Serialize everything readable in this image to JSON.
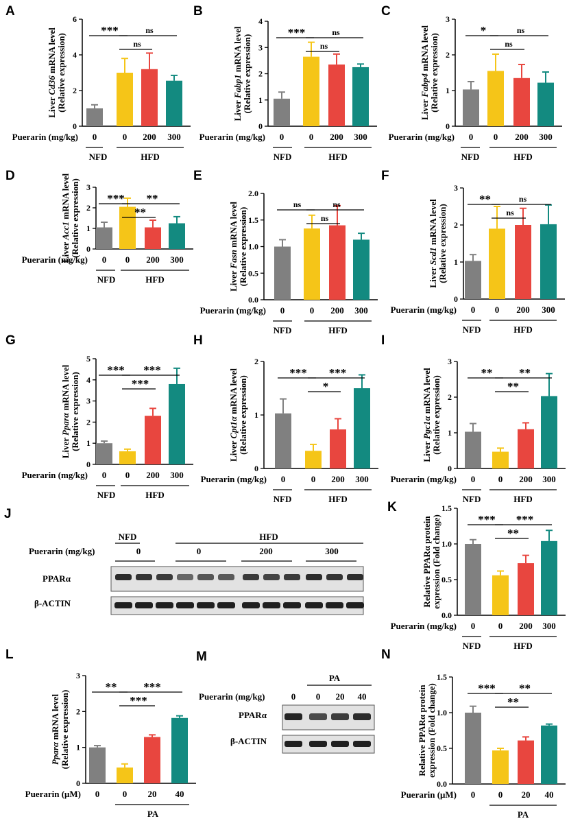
{
  "colors": {
    "NFD": "#808080",
    "HFD": "#f5c518",
    "Low": "#e8463f",
    "High": "#138a80",
    "axis": "#000000",
    "sig_line": "#000000"
  },
  "x_title_mgkg": "Puerarin (mg/kg)",
  "x_title_uM": "Puerarin (μM)",
  "chart_data": [
    {
      "id": "A",
      "type": "bar",
      "gene": "Cd36",
      "ylabel_prefix": "Liver ",
      "ylabel_suffix": " mRNA level",
      "ylabel2": "(Relative expression)",
      "categories": [
        "0",
        "0",
        "200",
        "300"
      ],
      "groups": [
        "NFD",
        "HFD"
      ],
      "values": [
        1.0,
        3.0,
        3.2,
        2.55
      ],
      "errors": [
        0.2,
        0.8,
        0.9,
        0.3
      ],
      "ylim": [
        0,
        6
      ],
      "yticks": [
        "0",
        "2",
        "4",
        "6"
      ],
      "sig": [
        {
          "label": "***",
          "from": 0,
          "to": 1,
          "level": 0
        },
        {
          "label": "ns",
          "from": 1,
          "to": 3,
          "level": 0
        },
        {
          "label": "ns",
          "from": 1,
          "to": 2,
          "level": 1
        }
      ]
    },
    {
      "id": "B",
      "type": "bar",
      "gene": "Fabp1",
      "ylabel_prefix": "Liver ",
      "ylabel_suffix": " mRNA level",
      "ylabel2": "(Relative expression)",
      "categories": [
        "0",
        "0",
        "200",
        "300"
      ],
      "groups": [
        "NFD",
        "HFD"
      ],
      "values": [
        1.05,
        2.65,
        2.35,
        2.25
      ],
      "errors": [
        0.25,
        0.55,
        0.4,
        0.12
      ],
      "ylim": [
        0,
        4
      ],
      "yticks": [
        "0",
        "1",
        "2",
        "3",
        "4"
      ],
      "sig": [
        {
          "label": "***",
          "from": 0,
          "to": 1,
          "level": 0
        },
        {
          "label": "ns",
          "from": 1,
          "to": 3,
          "level": 0
        },
        {
          "label": "ns",
          "from": 1,
          "to": 2,
          "level": 1
        }
      ]
    },
    {
      "id": "C",
      "type": "bar",
      "gene": "Fabp4",
      "ylabel_prefix": "Liver ",
      "ylabel_suffix": " mRNA level",
      "ylabel2": "(Relative expression)",
      "categories": [
        "0",
        "0",
        "200",
        "300"
      ],
      "groups": [
        "NFD",
        "HFD"
      ],
      "values": [
        1.03,
        1.55,
        1.35,
        1.22
      ],
      "errors": [
        0.22,
        0.47,
        0.38,
        0.3
      ],
      "ylim": [
        0,
        3
      ],
      "yticks": [
        "0",
        "1",
        "2",
        "3"
      ],
      "sig": [
        {
          "label": "*",
          "from": 0,
          "to": 1,
          "level": 0
        },
        {
          "label": "ns",
          "from": 1,
          "to": 3,
          "level": 0
        },
        {
          "label": "ns",
          "from": 1,
          "to": 2,
          "level": 1
        }
      ]
    },
    {
      "id": "D",
      "type": "bar",
      "gene": "Acc1",
      "ylabel_prefix": "Liver ",
      "ylabel_suffix": " mRNA level",
      "ylabel2": "(Relative expression)",
      "categories": [
        "0",
        "0",
        "200",
        "300"
      ],
      "groups": [
        "NFD",
        "HFD"
      ],
      "values": [
        1.05,
        2.05,
        1.05,
        1.25
      ],
      "errors": [
        0.25,
        0.42,
        0.35,
        0.32
      ],
      "ylim": [
        0,
        3
      ],
      "yticks": [
        "0",
        "1",
        "2",
        "3"
      ],
      "sig": [
        {
          "label": "***",
          "from": 0,
          "to": 1,
          "level": 0
        },
        {
          "label": "**",
          "from": 1,
          "to": 3,
          "level": 0
        },
        {
          "label": "**",
          "from": 1,
          "to": 2,
          "level": 1
        }
      ]
    },
    {
      "id": "E",
      "type": "bar",
      "gene": "Fasn",
      "ylabel_prefix": "Liver ",
      "ylabel_suffix": " mRNA level",
      "ylabel2": "(Relative expression)",
      "categories": [
        "0",
        "0",
        "200",
        "300"
      ],
      "groups": [
        "NFD",
        "HFD"
      ],
      "values": [
        1.0,
        1.34,
        1.4,
        1.13
      ],
      "errors": [
        0.13,
        0.25,
        0.37,
        0.12
      ],
      "ylim": [
        0,
        2
      ],
      "yticks": [
        "0.0",
        "0.5",
        "1.0",
        "1.5",
        "2.0"
      ],
      "sig": [
        {
          "label": "ns",
          "from": 0,
          "to": 1,
          "level": 0
        },
        {
          "label": "ns",
          "from": 1,
          "to": 3,
          "level": 0
        },
        {
          "label": "ns",
          "from": 1,
          "to": 2,
          "level": 1
        }
      ]
    },
    {
      "id": "F",
      "type": "bar",
      "gene": "Scd1",
      "ylabel_prefix": "Liver ",
      "ylabel_suffix": " mRNA level",
      "ylabel2": "(Relative expression)",
      "categories": [
        "0",
        "0",
        "200",
        "300"
      ],
      "groups": [
        "NFD",
        "HFD"
      ],
      "values": [
        1.03,
        1.9,
        2.0,
        2.02
      ],
      "errors": [
        0.17,
        0.6,
        0.45,
        0.52
      ],
      "ylim": [
        0,
        3
      ],
      "yticks": [
        "0",
        "1",
        "2",
        "3"
      ],
      "sig": [
        {
          "label": "**",
          "from": 0,
          "to": 1,
          "level": 0
        },
        {
          "label": "ns",
          "from": 1,
          "to": 3,
          "level": 0
        },
        {
          "label": "ns",
          "from": 1,
          "to": 2,
          "level": 1
        }
      ]
    },
    {
      "id": "G",
      "type": "bar",
      "gene": "Pparα",
      "ylabel_prefix": "Liver ",
      "ylabel_suffix": " mRNA level",
      "ylabel2": "(Relative expression)",
      "categories": [
        "0",
        "0",
        "200",
        "300"
      ],
      "groups": [
        "NFD",
        "HFD"
      ],
      "values": [
        1.0,
        0.62,
        2.3,
        3.8
      ],
      "errors": [
        0.1,
        0.1,
        0.35,
        0.75
      ],
      "ylim": [
        0,
        5
      ],
      "yticks": [
        "0",
        "1",
        "2",
        "3",
        "4",
        "5"
      ],
      "sig": [
        {
          "label": "***",
          "from": 0,
          "to": 1,
          "level": 0
        },
        {
          "label": "***",
          "from": 1,
          "to": 3,
          "level": 0
        },
        {
          "label": "***",
          "from": 1,
          "to": 2,
          "level": 1
        }
      ]
    },
    {
      "id": "H",
      "type": "bar",
      "gene": "Cpt1α",
      "ylabel_prefix": "Liver ",
      "ylabel_suffix": " mRNA level",
      "ylabel2": "(Relative expression)",
      "categories": [
        "0",
        "0",
        "200",
        "300"
      ],
      "groups": [
        "NFD",
        "HFD"
      ],
      "values": [
        1.03,
        0.33,
        0.73,
        1.5
      ],
      "errors": [
        0.27,
        0.12,
        0.2,
        0.25
      ],
      "ylim": [
        0,
        2
      ],
      "yticks": [
        "0",
        "1",
        "2"
      ],
      "sig": [
        {
          "label": "***",
          "from": 0,
          "to": 1,
          "level": 0
        },
        {
          "label": "***",
          "from": 1,
          "to": 3,
          "level": 0
        },
        {
          "label": "*",
          "from": 1,
          "to": 2,
          "level": 1
        }
      ]
    },
    {
      "id": "I",
      "type": "bar",
      "gene": "Pgc1α",
      "ylabel_prefix": "Liver ",
      "ylabel_suffix": " mRNA level",
      "ylabel2": "(Relative expression)",
      "categories": [
        "0",
        "0",
        "200",
        "300"
      ],
      "groups": [
        "NFD",
        "HFD"
      ],
      "values": [
        1.03,
        0.47,
        1.1,
        2.03
      ],
      "errors": [
        0.23,
        0.1,
        0.18,
        0.63
      ],
      "ylim": [
        0,
        3
      ],
      "yticks": [
        "0",
        "1",
        "2",
        "3"
      ],
      "sig": [
        {
          "label": "**",
          "from": 0,
          "to": 1,
          "level": 0
        },
        {
          "label": "**",
          "from": 1,
          "to": 3,
          "level": 0
        },
        {
          "label": "**",
          "from": 1,
          "to": 2,
          "level": 1
        }
      ]
    },
    {
      "id": "K",
      "type": "bar",
      "gene": "",
      "ylabel_prefix": "Relative PPARα protein",
      "ylabel_suffix": "",
      "ylabel2": "expression (Fold change)",
      "categories": [
        "0",
        "0",
        "200",
        "300"
      ],
      "groups": [
        "NFD",
        "HFD"
      ],
      "values": [
        1.0,
        0.56,
        0.73,
        1.04
      ],
      "errors": [
        0.06,
        0.06,
        0.11,
        0.15
      ],
      "ylim": [
        0,
        1.5
      ],
      "yticks": [
        "0.0",
        "0.5",
        "1.0",
        "1.5"
      ],
      "sig": [
        {
          "label": "***",
          "from": 0,
          "to": 1,
          "level": 0
        },
        {
          "label": "***",
          "from": 1,
          "to": 3,
          "level": 0
        },
        {
          "label": "**",
          "from": 1,
          "to": 2,
          "level": 1
        }
      ]
    },
    {
      "id": "L",
      "type": "bar",
      "gene": "Pparα",
      "ylabel_prefix": "",
      "ylabel_suffix": " mRNA level",
      "ylabel2": "(Relative expression)",
      "categories": [
        "0",
        "0",
        "20",
        "40"
      ],
      "groups": [
        "",
        "PA"
      ],
      "values": [
        1.0,
        0.44,
        1.29,
        1.82
      ],
      "errors": [
        0.05,
        0.1,
        0.06,
        0.06
      ],
      "ylim": [
        0,
        3
      ],
      "yticks": [
        "0",
        "1",
        "2",
        "3"
      ],
      "sig": [
        {
          "label": "**",
          "from": 0,
          "to": 1,
          "level": 0
        },
        {
          "label": "***",
          "from": 1,
          "to": 3,
          "level": 0
        },
        {
          "label": "***",
          "from": 1,
          "to": 2,
          "level": 1
        }
      ]
    },
    {
      "id": "N",
      "type": "bar",
      "gene": "",
      "ylabel_prefix": "Relative PPARα protein",
      "ylabel_suffix": "",
      "ylabel2": "expression (Fold change)",
      "categories": [
        "0",
        "0",
        "20",
        "40"
      ],
      "groups": [
        "",
        "PA"
      ],
      "values": [
        1.0,
        0.47,
        0.61,
        0.82
      ],
      "errors": [
        0.09,
        0.03,
        0.05,
        0.02
      ],
      "ylim": [
        0,
        1.5
      ],
      "yticks": [
        "0.0",
        "0.5",
        "1.0",
        "1.5"
      ],
      "sig": [
        {
          "label": "***",
          "from": 0,
          "to": 1,
          "level": 0
        },
        {
          "label": "**",
          "from": 1,
          "to": 3,
          "level": 0
        },
        {
          "label": "**",
          "from": 1,
          "to": 2,
          "level": 1
        }
      ]
    }
  ],
  "blot_J": {
    "label": "J",
    "nfd": "NFD",
    "hfd": "HFD",
    "puerarin": "Puerarin (mg/kg)",
    "doses": [
      "0",
      "0",
      "200",
      "300"
    ],
    "row1": "PPARα",
    "row2": "β-ACTIN"
  },
  "blot_M": {
    "label": "M",
    "pa": "PA",
    "puerarin": "Puerarin (mg/kg)",
    "doses": [
      "0",
      "0",
      "20",
      "40"
    ],
    "row1": "PPARα",
    "row2": "β-ACTIN"
  }
}
